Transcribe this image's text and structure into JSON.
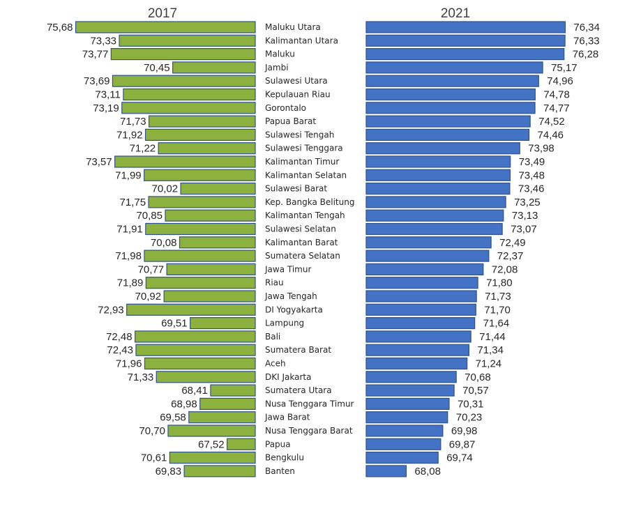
{
  "colors": {
    "left_bar": "#8cb13f",
    "right_bar": "#4472c4",
    "bar_edge": "#2f528f"
  },
  "chart_data": [
    {
      "type": "bar",
      "orientation": "horizontal",
      "direction": "right-to-left",
      "title": "2017",
      "categories": [
        "Maluku Utara",
        "Kalimantan Utara",
        "Maluku",
        "Jambi",
        "Sulawesi Utara",
        "Kepulauan Riau",
        "Gorontalo",
        "Papua Barat",
        "Sulawesi Tengah",
        "Sulawesi Tenggara",
        "Kalimantan Timur",
        "Kalimantan Selatan",
        "Sulawesi Barat",
        "Kep. Bangka Belitung",
        "Kalimantan Tengah",
        "Sulawesi Selatan",
        "Kalimantan Barat",
        "Sumatera Selatan",
        "Jawa Timur",
        "Riau",
        "Jawa Tengah",
        "DI Yogyakarta",
        "Lampung",
        "Bali",
        "Sumatera Barat",
        "Aceh",
        "DKI Jakarta",
        "Sumatera Utara",
        "Nusa Tenggara Timur",
        "Jawa Barat",
        "Nusa Tenggara Barat",
        "Papua",
        "Bengkulu",
        "Banten"
      ],
      "values": [
        75.68,
        73.33,
        73.77,
        70.45,
        73.69,
        73.11,
        73.19,
        71.73,
        71.92,
        71.22,
        73.57,
        71.99,
        70.02,
        71.75,
        70.85,
        71.91,
        70.08,
        71.98,
        70.77,
        71.89,
        70.92,
        72.93,
        69.51,
        72.48,
        72.43,
        71.96,
        71.33,
        68.41,
        68.98,
        69.58,
        70.7,
        67.52,
        70.61,
        69.83
      ],
      "value_labels": [
        "75,68",
        "73,33",
        "73,77",
        "70,45",
        "73,69",
        "73,11",
        "73,19",
        "71,73",
        "71,92",
        "71,22",
        "73,57",
        "71,99",
        "70,02",
        "71,75",
        "70,85",
        "71,91",
        "70,08",
        "71,98",
        "70,77",
        "71,89",
        "70,92",
        "72,93",
        "69,51",
        "72,48",
        "72,43",
        "71,96",
        "71,33",
        "68,41",
        "68,98",
        "69,58",
        "70,70",
        "67,52",
        "70,61",
        "69,83"
      ],
      "xlim": [
        66,
        76
      ]
    },
    {
      "type": "bar",
      "orientation": "horizontal",
      "direction": "left-to-right",
      "title": "2021",
      "categories": [
        "Maluku Utara",
        "Kalimantan Utara",
        "Maluku",
        "Jambi",
        "Sulawesi Utara",
        "Kepulauan Riau",
        "Gorontalo",
        "Papua Barat",
        "Sulawesi Tengah",
        "Sulawesi Tenggara",
        "Kalimantan Timur",
        "Kalimantan Selatan",
        "Sulawesi Barat",
        "Kep. Bangka Belitung",
        "Kalimantan Tengah",
        "Sulawesi Selatan",
        "Kalimantan Barat",
        "Sumatera Selatan",
        "Jawa Timur",
        "Riau",
        "Jawa Tengah",
        "DI Yogyakarta",
        "Lampung",
        "Bali",
        "Sumatera Barat",
        "Aceh",
        "DKI Jakarta",
        "Sumatera Utara",
        "Nusa Tenggara Timur",
        "Jawa Barat",
        "Nusa Tenggara Barat",
        "Papua",
        "Bengkulu",
        "Banten"
      ],
      "values": [
        76.34,
        76.33,
        76.28,
        75.17,
        74.96,
        74.78,
        74.77,
        74.52,
        74.46,
        73.98,
        73.49,
        73.48,
        73.46,
        73.25,
        73.13,
        73.07,
        72.49,
        72.37,
        72.08,
        71.8,
        71.73,
        71.7,
        71.64,
        71.44,
        71.34,
        71.24,
        70.68,
        70.57,
        70.31,
        70.23,
        69.98,
        69.87,
        69.74,
        68.08
      ],
      "value_labels": [
        "76,34",
        "76,33",
        "76,28",
        "75,17",
        "74,96",
        "74,78",
        "74,77",
        "74,52",
        "74,46",
        "73,98",
        "73,49",
        "73,48",
        "73,46",
        "73,25",
        "73,13",
        "73,07",
        "72,49",
        "72,37",
        "72,08",
        "71,80",
        "71,73",
        "71,70",
        "71,64",
        "71,44",
        "71,34",
        "71,24",
        "70,68",
        "70,57",
        "70,31",
        "70,23",
        "69,98",
        "69,87",
        "69,74",
        "68,08"
      ],
      "xlim": [
        66,
        76.5
      ]
    }
  ]
}
